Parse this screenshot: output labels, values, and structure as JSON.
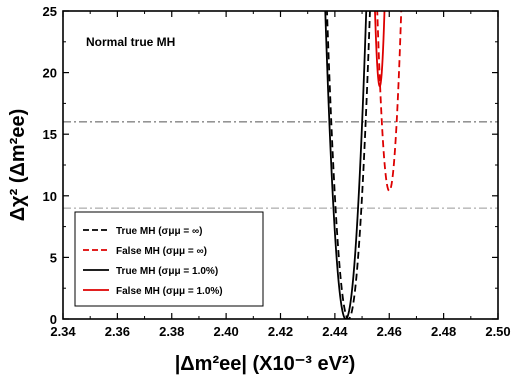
{
  "chart_data": {
    "type": "line",
    "title": "",
    "annotation": "Normal true MH",
    "xlabel": "|Δm²ee| (X10⁻³ eV²)",
    "ylabel": "Δχ² (Δm²ee)",
    "xlim": [
      2.34,
      2.5
    ],
    "ylim": [
      0,
      25
    ],
    "xticks": [
      "2.34",
      "2.36",
      "2.38",
      "2.40",
      "2.42",
      "2.44",
      "2.46",
      "2.48",
      "2.50"
    ],
    "yticks": [
      "0",
      "5",
      "10",
      "15",
      "20",
      "25"
    ],
    "grid": false,
    "legend_position": "bottom-left",
    "reference_lines": [
      {
        "y": 16,
        "style": "dash-dot",
        "color": "#555555"
      },
      {
        "y": 9,
        "style": "dash-dot",
        "color": "#999999"
      }
    ],
    "series": [
      {
        "name": "True MH (σμμ = ∞)",
        "color": "#000000",
        "dash": "dashed",
        "minimum": [
          2.445,
          0
        ],
        "curvature": 400000.0
      },
      {
        "name": "False MH (σμμ = ∞)",
        "color": "#dd0000",
        "dash": "dashed",
        "minimum": [
          2.46,
          10.4
        ],
        "curvature": 750000.0
      },
      {
        "name": "True MH (σμμ = 1.0%)",
        "color": "#000000",
        "dash": "solid",
        "minimum": [
          2.444,
          0
        ],
        "curvature": 440000.0
      },
      {
        "name": "False MH (σμμ = 1.0%)",
        "color": "#dd0000",
        "dash": "solid",
        "minimum": [
          2.4565,
          18.9
        ],
        "curvature": 2000000.0
      }
    ]
  }
}
